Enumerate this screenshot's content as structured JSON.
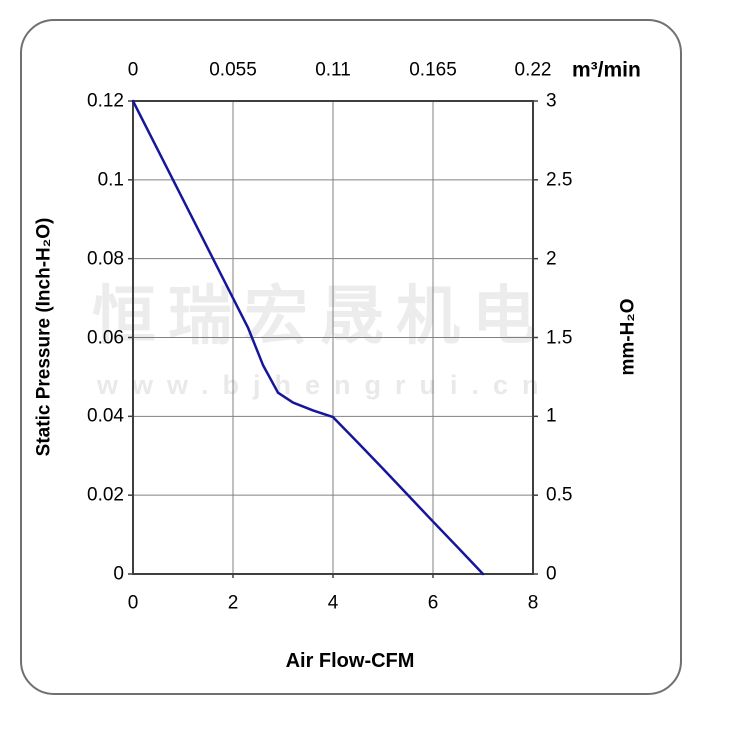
{
  "watermark": {
    "line1": "恒瑞宏晟机电",
    "line2": "www.bjhengrui.cn"
  },
  "chart_data": {
    "type": "line",
    "title": "",
    "grid": true,
    "legend": "none",
    "plot_border_color": "#3f3f3f",
    "grid_color": "#808080",
    "x_bottom": {
      "label": "Air Flow-CFM",
      "ticks": [
        "0",
        "2",
        "4",
        "6",
        "8"
      ],
      "range": [
        0,
        8
      ]
    },
    "x_top": {
      "unit": "m³/min",
      "ticks": [
        "0",
        "0.055",
        "0.11",
        "0.165",
        "0.22"
      ],
      "range": [
        0,
        0.22
      ]
    },
    "y_left": {
      "label": "Static Pressure (Inch-H₂O)",
      "ticks": [
        "0.12",
        "0.1",
        "0.08",
        "0.06",
        "0.04",
        "0.02",
        "0"
      ],
      "range": [
        0,
        0.12
      ]
    },
    "y_right": {
      "label": "mm-H₂O",
      "ticks": [
        "3",
        "2.5",
        "2",
        "1.5",
        "1",
        "0.5",
        "0"
      ],
      "range": [
        0,
        3
      ]
    },
    "series": [
      {
        "name": "static-pressure-vs-airflow",
        "color": "#16169c",
        "x_unit": "CFM",
        "y_unit": "Inch-H2O",
        "points": [
          [
            0,
            0.12
          ],
          [
            0.8,
            0.1
          ],
          [
            1.6,
            0.08
          ],
          [
            2.3,
            0.0625
          ],
          [
            2.6,
            0.053
          ],
          [
            2.9,
            0.046
          ],
          [
            3.2,
            0.0435
          ],
          [
            3.6,
            0.0415
          ],
          [
            4.0,
            0.0398
          ],
          [
            4.5,
            0.0333
          ],
          [
            5.0,
            0.0267
          ],
          [
            5.5,
            0.02
          ],
          [
            6.0,
            0.0133
          ],
          [
            6.5,
            0.0067
          ],
          [
            7.0,
            0.0
          ]
        ]
      }
    ]
  }
}
